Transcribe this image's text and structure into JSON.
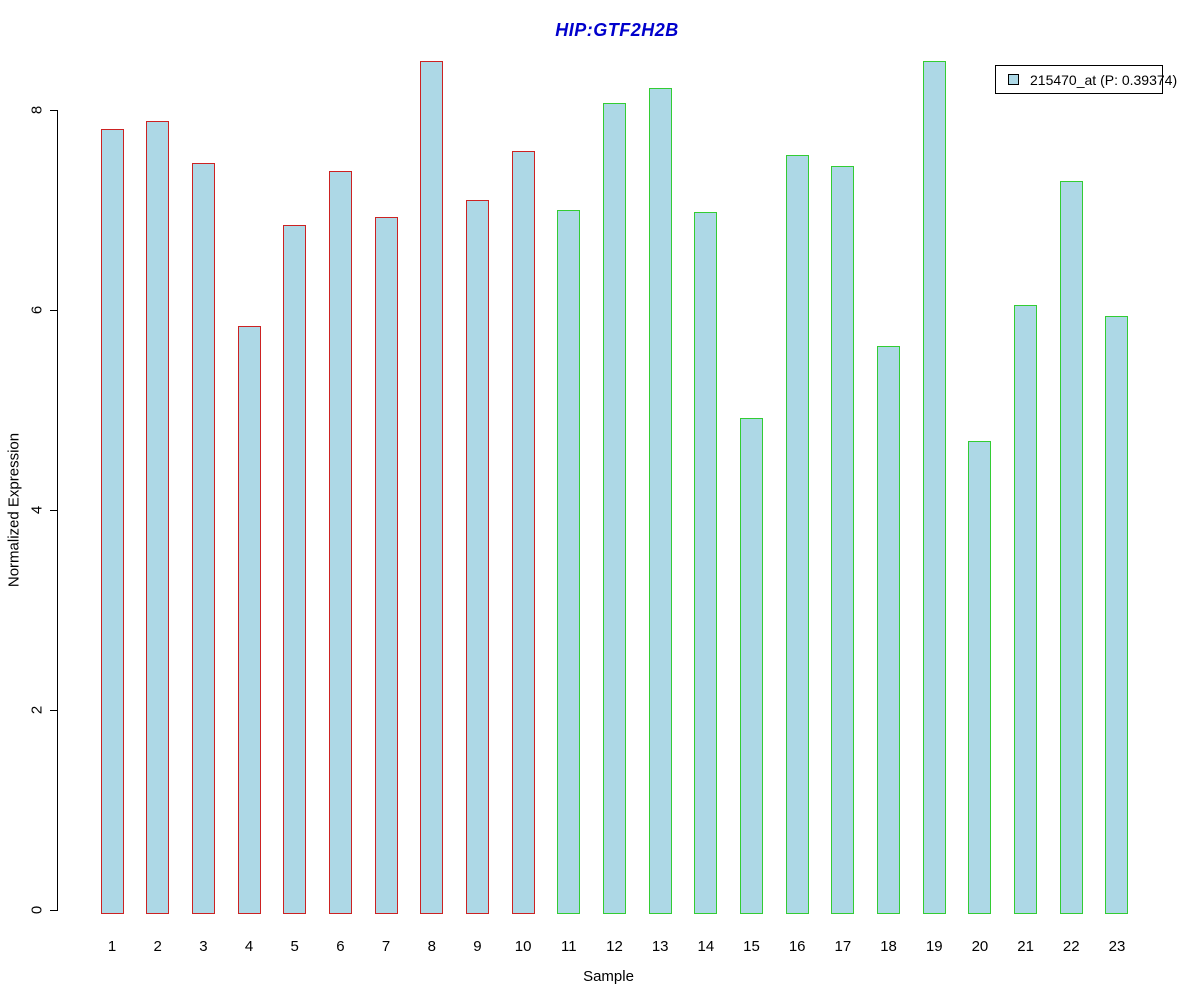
{
  "page": {
    "background": "#FFFFFF"
  },
  "chart_data": {
    "type": "bar",
    "title": "HIP:GTF2H2B",
    "title_color": "#0000CC",
    "xlabel": "Sample",
    "ylabel": "Normalized Expression",
    "categories": [
      "1",
      "2",
      "3",
      "4",
      "5",
      "6",
      "7",
      "8",
      "9",
      "10",
      "11",
      "12",
      "13",
      "14",
      "15",
      "16",
      "17",
      "18",
      "19",
      "20",
      "21",
      "22",
      "23"
    ],
    "values": [
      7.85,
      7.93,
      7.51,
      5.88,
      6.89,
      7.43,
      6.97,
      8.53,
      7.14,
      7.63,
      7.04,
      8.11,
      8.26,
      7.02,
      4.96,
      7.59,
      7.48,
      5.68,
      8.53,
      4.73,
      6.09,
      7.33,
      5.98
    ],
    "bar_fill": "#ADD8E6",
    "bar_border_colors": [
      "#CC2222",
      "#CC2222",
      "#CC2222",
      "#CC2222",
      "#CC2222",
      "#CC2222",
      "#CC2222",
      "#CC2222",
      "#CC2222",
      "#CC2222",
      "#33CC33",
      "#33CC33",
      "#33CC33",
      "#33CC33",
      "#33CC33",
      "#33CC33",
      "#33CC33",
      "#33CC33",
      "#33CC33",
      "#33CC33",
      "#33CC33",
      "#33CC33",
      "#33CC33"
    ],
    "ylim": [
      0,
      8.6
    ],
    "yticks": [
      "0",
      "2",
      "4",
      "6",
      "8"
    ],
    "grid": false,
    "axis_color": "#000000",
    "legend": {
      "position": "top-right",
      "entries": [
        {
          "label": "215470_at (P: 0.39374)",
          "swatch_fill": "#ADD8E6",
          "swatch_border": "#000000"
        }
      ]
    }
  }
}
